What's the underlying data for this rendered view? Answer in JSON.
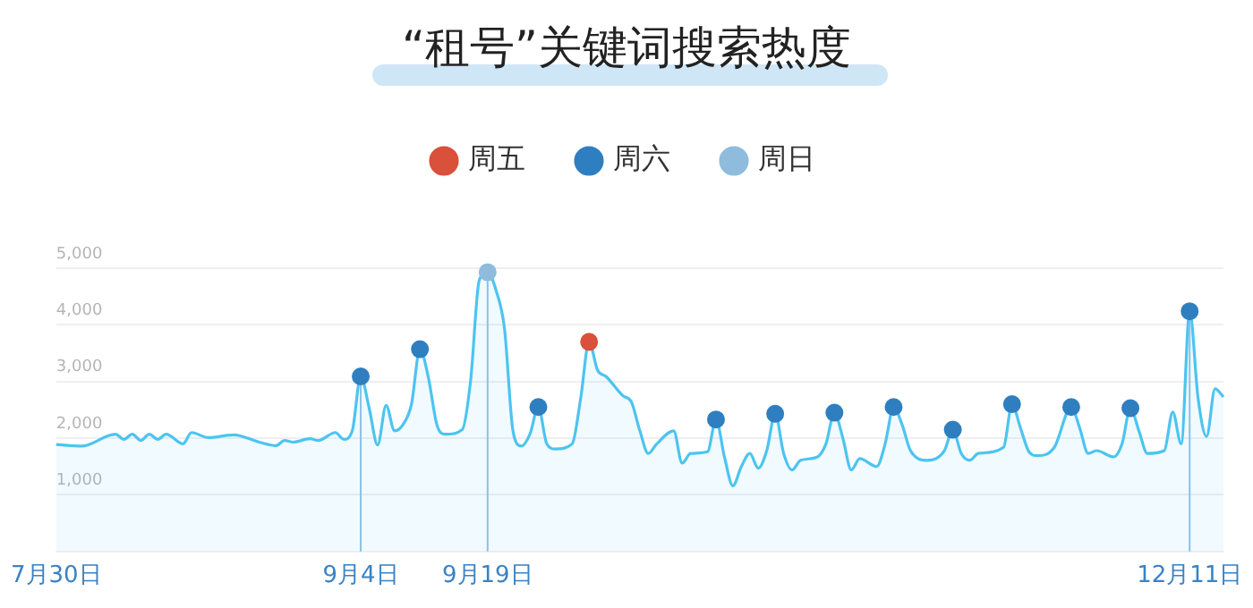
{
  "chart_data": {
    "type": "area",
    "title": "“租号”关键词搜索热度",
    "legend": "top",
    "grid": "y",
    "marker": "none",
    "xlim": [
      "--07-30",
      "--12-15"
    ],
    "xticks": [
      {
        "value": "--07-30",
        "label": "7月30日"
      },
      {
        "value": "--09-04",
        "label": "9月4日"
      },
      {
        "value": "--09-19",
        "label": "9月19日"
      },
      {
        "value": "--12-11",
        "label": "12月11日"
      }
    ],
    "ylim": [
      0,
      5000
    ],
    "yticks": [
      {
        "value": 1000,
        "label": "1,000"
      },
      {
        "value": 2000,
        "label": "2,000"
      },
      {
        "value": 3000,
        "label": "3,000"
      },
      {
        "value": 4000,
        "label": "4,000"
      },
      {
        "value": 5000,
        "label": "5,000"
      }
    ],
    "ref_lines": [
      {
        "axis": "x",
        "value": "--09-04",
        "color": "#8fc3e6"
      },
      {
        "axis": "x",
        "value": "--09-19",
        "color": "#8fc3e6"
      },
      {
        "axis": "x",
        "value": "--12-11",
        "color": "#8fc3e6"
      }
    ],
    "series": [
      {
        "color": "#4cc4f0",
        "x": [
          "--07-30",
          "--08-02",
          "--08-06",
          "--08-07",
          "--08-08",
          "--08-09",
          "--08-10",
          "--08-11",
          "--08-12",
          "--08-14",
          "--08-15",
          "--08-17",
          "--08-20",
          "--08-23",
          "--08-25",
          "--08-26",
          "--08-27",
          "--08-29",
          "--08-30",
          "--09-01",
          "--09-02",
          "--09-03",
          "--09-04",
          "--09-05",
          "--09-06",
          "--09-07",
          "--09-08",
          "--09-09",
          "--09-10",
          "--09-11",
          "--09-12",
          "--09-13",
          "--09-14",
          "--09-16",
          "--09-17",
          "--09-18",
          "--09-19",
          "--09-20",
          "--09-21",
          "--09-22",
          "--09-23",
          "--09-24",
          "--09-25",
          "--09-26",
          "--09-27",
          "--09-29",
          "--09-30",
          "--10-01",
          "--10-02",
          "--10-03",
          "--10-05",
          "--10-06",
          "--10-07",
          "--10-08",
          "--10-09",
          "--10-11",
          "--10-12",
          "--10-13",
          "--10-15",
          "--10-16",
          "--10-17",
          "--10-18",
          "--10-19",
          "--10-20",
          "--10-21",
          "--10-22",
          "--10-23",
          "--10-24",
          "--10-25",
          "--10-26",
          "--10-28",
          "--10-29",
          "--10-30",
          "--10-31",
          "--11-01",
          "--11-02",
          "--11-04",
          "--11-05",
          "--11-06",
          "--11-07",
          "--11-08",
          "--11-10",
          "--11-12",
          "--11-13",
          "--11-14",
          "--11-15",
          "--11-16",
          "--11-19",
          "--11-20",
          "--11-21",
          "--11-22",
          "--11-23",
          "--11-25",
          "--11-27",
          "--11-28",
          "--11-29",
          "--11-30",
          "--12-02",
          "--12-03",
          "--12-04",
          "--12-05",
          "--12-06",
          "--12-08",
          "--12-09",
          "--12-10",
          "--12-11",
          "--12-12",
          "--12-13",
          "--12-14",
          "--12-15"
        ],
        "values": [
          1890,
          1860,
          2070,
          1980,
          2070,
          1960,
          2070,
          1980,
          2070,
          1900,
          2100,
          2010,
          2060,
          1930,
          1870,
          1960,
          1930,
          1990,
          1960,
          2100,
          1980,
          2130,
          3090,
          2530,
          1880,
          2580,
          2130,
          2240,
          2600,
          3570,
          3070,
          2240,
          2070,
          2150,
          3030,
          4780,
          4930,
          4610,
          3930,
          2130,
          1860,
          2070,
          2550,
          1900,
          1810,
          1900,
          2700,
          3700,
          3200,
          3090,
          2750,
          2640,
          2130,
          1730,
          1900,
          2130,
          1560,
          1730,
          1760,
          2330,
          1670,
          1160,
          1500,
          1730,
          1470,
          1780,
          2430,
          1730,
          1440,
          1610,
          1670,
          1900,
          2450,
          2000,
          1440,
          1640,
          1500,
          1900,
          2550,
          2240,
          1780,
          1610,
          1780,
          2150,
          1730,
          1610,
          1730,
          1840,
          2600,
          2180,
          1760,
          1690,
          1840,
          2550,
          2180,
          1730,
          1780,
          1670,
          1900,
          2530,
          2130,
          1730,
          1780,
          2460,
          1900,
          4240,
          2700,
          2030,
          2870,
          2730
        ]
      },
      {
        "type": "scatter",
        "name": "周五",
        "color": "#d9503b",
        "marker": "circle",
        "x": [
          "--10-01"
        ],
        "values": [
          3700
        ]
      },
      {
        "type": "scatter",
        "name": "周六",
        "color": "#2f7fc0",
        "marker": "circle",
        "x": [
          "--09-04",
          "--09-11",
          "--09-25",
          "--10-16",
          "--10-23",
          "--10-30",
          "--11-06",
          "--11-13",
          "--11-20",
          "--11-27",
          "--12-04",
          "--12-11"
        ],
        "values": [
          3090,
          3570,
          2550,
          2330,
          2430,
          2450,
          2550,
          2150,
          2600,
          2550,
          2530,
          4240
        ]
      },
      {
        "type": "scatter",
        "name": "周日",
        "color": "#8fbcdd",
        "marker": "circle",
        "x": [
          "--09-19"
        ],
        "values": [
          4930
        ]
      }
    ]
  }
}
